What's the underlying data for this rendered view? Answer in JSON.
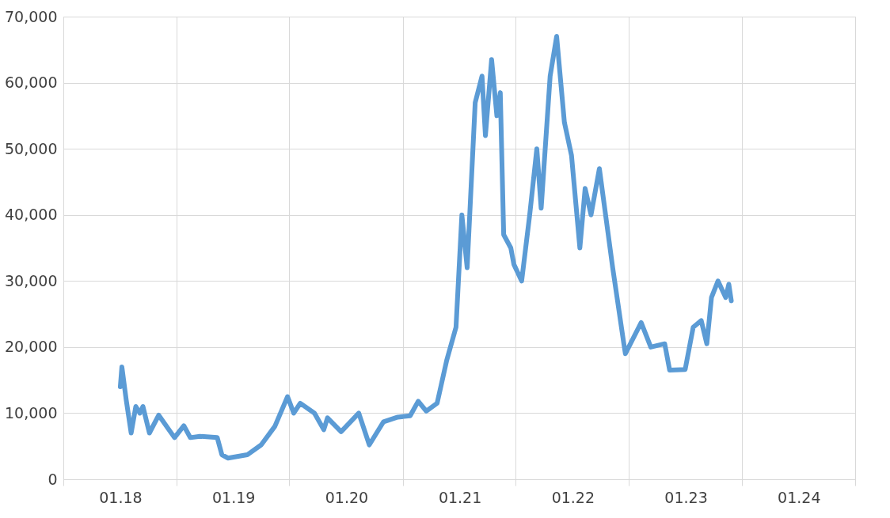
{
  "chart_data": {
    "type": "line",
    "x": [
      "2018-01-01",
      "2018-01-06",
      "2018-01-20",
      "2018-02-05",
      "2018-02-20",
      "2018-03-05",
      "2018-03-15",
      "2018-04-05",
      "2018-05-05",
      "2018-06-25",
      "2018-07-25",
      "2018-08-15",
      "2018-09-15",
      "2018-11-10",
      "2018-11-25",
      "2018-12-15",
      "2019-02-15",
      "2019-04-01",
      "2019-05-15",
      "2019-06-25",
      "2019-07-15",
      "2019-08-05",
      "2019-09-20",
      "2019-10-20",
      "2019-11-01",
      "2019-12-15",
      "2020-02-10",
      "2020-03-15",
      "2020-04-30",
      "2020-06-15",
      "2020-07-25",
      "2020-08-20",
      "2020-09-15",
      "2020-10-20",
      "2020-11-20",
      "2020-12-20",
      "2021-01-08",
      "2021-01-25",
      "2021-02-20",
      "2021-03-14",
      "2021-03-25",
      "2021-04-14",
      "2021-05-01",
      "2021-05-12",
      "2021-05-23",
      "2021-06-15",
      "2021-06-25",
      "2021-07-20",
      "2021-08-15",
      "2021-09-07",
      "2021-09-21",
      "2021-10-20",
      "2021-11-10",
      "2021-12-05",
      "2021-12-28",
      "2022-01-24",
      "2022-02-10",
      "2022-03-01",
      "2022-03-28",
      "2022-05-10",
      "2022-06-15",
      "2022-06-20",
      "2022-08-10",
      "2022-09-10",
      "2022-10-25",
      "2022-11-10",
      "2022-12-30",
      "2023-01-25",
      "2023-02-20",
      "2023-03-10",
      "2023-03-25",
      "2023-04-15",
      "2023-05-10",
      "2023-05-20",
      "2023-05-28"
    ],
    "series": [
      {
        "color": "#5b9bd5",
        "values": [
          14000,
          17000,
          12000,
          7000,
          11000,
          10000,
          11000,
          7000,
          9700,
          6300,
          8100,
          6300,
          6500,
          6300,
          3700,
          3200,
          3700,
          5200,
          8000,
          12500,
          10000,
          11500,
          10000,
          7500,
          9300,
          7200,
          10000,
          5200,
          8700,
          9400,
          9600,
          11800,
          10300,
          11500,
          18000,
          23000,
          40000,
          32000,
          57000,
          61000,
          52000,
          63500,
          55000,
          58500,
          37000,
          35000,
          32500,
          30000,
          40000,
          50000,
          41000,
          61000,
          67000,
          54000,
          49000,
          35000,
          44000,
          40000,
          47000,
          32000,
          20500,
          19000,
          23700,
          20000,
          20500,
          16500,
          16600,
          23000,
          24000,
          20500,
          27500,
          30000,
          27500,
          29500,
          27000
        ]
      }
    ],
    "xlim": [
      "2017-07-01",
      "2024-07-01"
    ],
    "xticks": [
      {
        "value": "2017-07-01",
        "label": null
      },
      {
        "value": "2018-01-01",
        "label": "01.18"
      },
      {
        "value": "2018-07-01",
        "label": null
      },
      {
        "value": "2019-01-01",
        "label": "01.19"
      },
      {
        "value": "2019-07-01",
        "label": null
      },
      {
        "value": "2020-01-01",
        "label": "01.20"
      },
      {
        "value": "2020-07-01",
        "label": null
      },
      {
        "value": "2021-01-01",
        "label": "01.21"
      },
      {
        "value": "2021-07-01",
        "label": null
      },
      {
        "value": "2022-01-01",
        "label": "01.22"
      },
      {
        "value": "2022-07-01",
        "label": null
      },
      {
        "value": "2023-01-01",
        "label": "01.23"
      },
      {
        "value": "2023-07-01",
        "label": null
      },
      {
        "value": "2024-01-01",
        "label": "01.24"
      },
      {
        "value": "2024-07-01",
        "label": null
      }
    ],
    "ylim": [
      0,
      70000
    ],
    "yticks": [
      0,
      {
        "value": 10000,
        "label": "10,000"
      },
      {
        "value": 20000,
        "label": "20,000"
      },
      {
        "value": 30000,
        "label": "30,000"
      },
      {
        "value": 40000,
        "label": "40,000"
      },
      {
        "value": 50000,
        "label": "50,000"
      },
      {
        "value": 60000,
        "label": "60,000"
      },
      {
        "value": 70000,
        "label": "70,000"
      }
    ],
    "grid": true,
    "legend": false,
    "marker": "none",
    "line_style": "solid"
  }
}
